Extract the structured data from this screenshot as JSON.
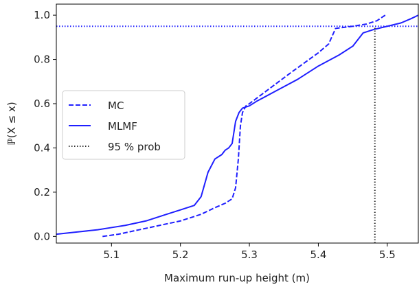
{
  "chart_data": {
    "type": "line",
    "xlabel": "Maximum run-up height (m)",
    "ylabel": "ℙ(X ≤ x)",
    "xlim": [
      5.02,
      5.545
    ],
    "ylim": [
      -0.03,
      1.05
    ],
    "xticks": [
      5.1,
      5.2,
      5.3,
      5.4,
      5.5
    ],
    "yticks": [
      0.0,
      0.2,
      0.4,
      0.6,
      0.8,
      1.0
    ],
    "xtick_labels": [
      "5.1",
      "5.2",
      "5.3",
      "5.4",
      "5.5"
    ],
    "ytick_labels": [
      "0.0",
      "0.2",
      "0.4",
      "0.6",
      "0.8",
      "1.0"
    ],
    "grid": false,
    "legend_position": "center-left",
    "series": [
      {
        "name": "MC",
        "style": "dashed",
        "color": "#1f1fff",
        "x": [
          5.087,
          5.11,
          5.14,
          5.17,
          5.2,
          5.23,
          5.25,
          5.265,
          5.275,
          5.28,
          5.284,
          5.287,
          5.29,
          5.295,
          5.3,
          5.33,
          5.36,
          5.4,
          5.415,
          5.425,
          5.45,
          5.47,
          5.485,
          5.497
        ],
        "y": [
          0.0,
          0.01,
          0.03,
          0.05,
          0.07,
          0.1,
          0.13,
          0.15,
          0.17,
          0.22,
          0.35,
          0.5,
          0.56,
          0.59,
          0.6,
          0.67,
          0.74,
          0.83,
          0.87,
          0.94,
          0.95,
          0.96,
          0.975,
          1.0
        ]
      },
      {
        "name": "MLMF",
        "style": "solid",
        "color": "#1f1fff",
        "x": [
          5.02,
          5.05,
          5.08,
          5.1,
          5.12,
          5.15,
          5.18,
          5.2,
          5.22,
          5.23,
          5.24,
          5.25,
          5.26,
          5.265,
          5.27,
          5.275,
          5.28,
          5.285,
          5.29,
          5.3,
          5.31,
          5.34,
          5.37,
          5.4,
          5.43,
          5.45,
          5.465,
          5.48,
          5.5,
          5.52,
          5.535,
          5.545
        ],
        "y": [
          0.01,
          0.02,
          0.03,
          0.04,
          0.05,
          0.07,
          0.1,
          0.12,
          0.14,
          0.18,
          0.29,
          0.35,
          0.37,
          0.39,
          0.4,
          0.42,
          0.52,
          0.56,
          0.58,
          0.59,
          0.61,
          0.66,
          0.71,
          0.77,
          0.82,
          0.86,
          0.92,
          0.935,
          0.95,
          0.965,
          0.985,
          1.0
        ]
      },
      {
        "name": "95 % prob",
        "style": "dotted",
        "color": "#1f1fff",
        "y_value": 0.95,
        "x_range": [
          5.02,
          5.545
        ]
      },
      {
        "name": "",
        "style": "dotted",
        "color": "#333333",
        "x_value": 5.482,
        "y_range": [
          -0.03,
          0.95
        ]
      }
    ],
    "legend": [
      "MC",
      "MLMF",
      "95 % prob"
    ]
  }
}
